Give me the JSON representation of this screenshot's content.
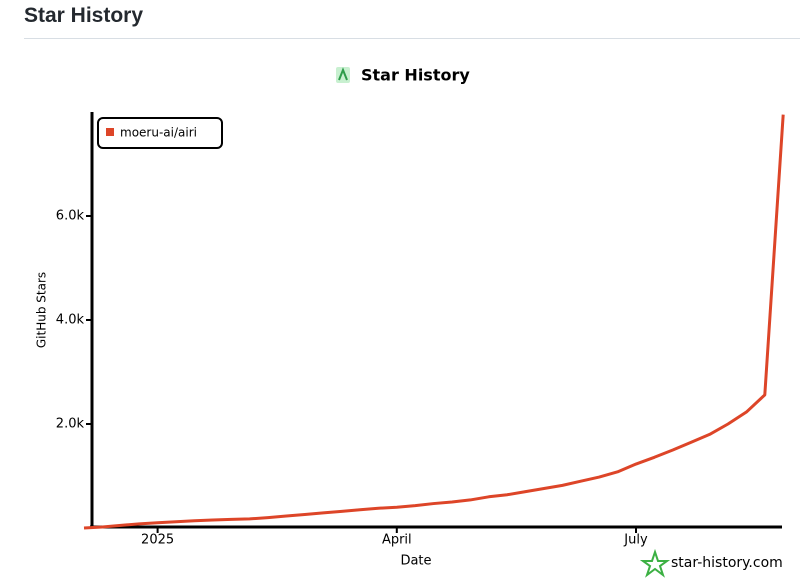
{
  "header": {
    "title": "Star History"
  },
  "chart_data": {
    "type": "line",
    "title": "Star History",
    "x_label": "Date",
    "y_label": "GitHub Stars",
    "categories": [
      null,
      null,
      null,
      null,
      "2025",
      null,
      null,
      null,
      null,
      null,
      null,
      null,
      null,
      null,
      null,
      null,
      null,
      "April",
      null,
      null,
      null,
      null,
      null,
      null,
      null,
      null,
      null,
      null,
      null,
      null,
      "July",
      null,
      null,
      null,
      null,
      null,
      null,
      null,
      null
    ],
    "series": [
      {
        "name": "moeru-ai/airi",
        "color": "#dd4528",
        "values": [
          0,
          20,
          50,
          80,
          100,
          120,
          140,
          155,
          165,
          175,
          200,
          230,
          260,
          290,
          320,
          350,
          380,
          400,
          430,
          470,
          500,
          540,
          600,
          640,
          700,
          760,
          820,
          900,
          980,
          1080,
          1230,
          1360,
          1500,
          1650,
          1800,
          2000,
          2230,
          2560,
          7950
        ]
      }
    ],
    "ylim": [
      0,
      8000
    ],
    "yticks": [
      {
        "value": 2000,
        "label": "2.0k"
      },
      {
        "value": 4000,
        "label": "4.0k"
      },
      {
        "value": 6000,
        "label": "6.0k"
      }
    ],
    "legend": "top-left",
    "watermark": "star-history.com"
  }
}
